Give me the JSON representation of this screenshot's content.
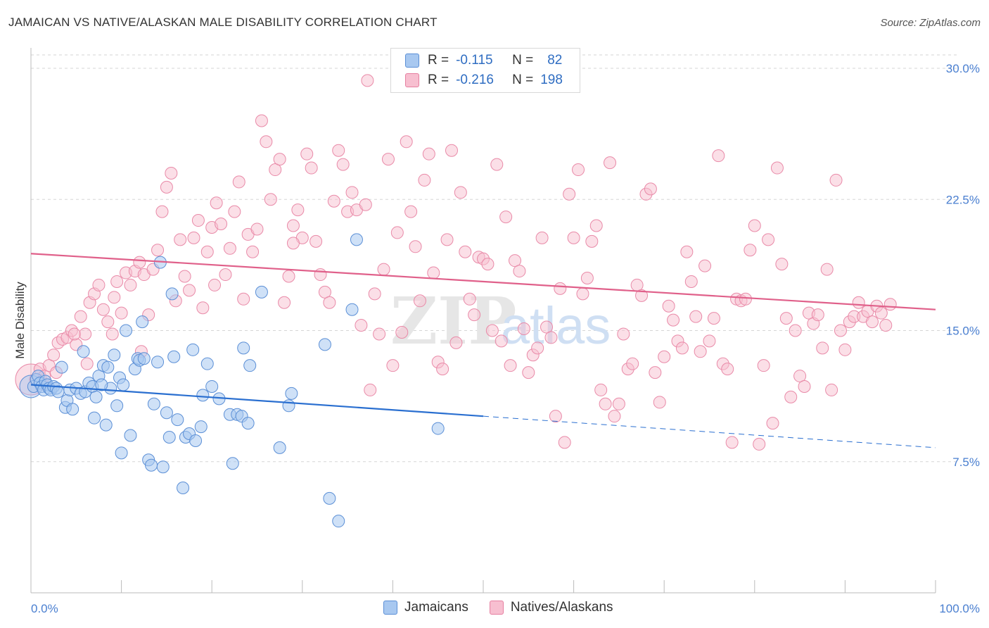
{
  "header": {
    "title": "JAMAICAN VS NATIVE/ALASKAN MALE DISABILITY CORRELATION CHART",
    "source": "Source: ZipAtlas.com"
  },
  "watermark": {
    "zip": "ZIP",
    "atlas": "atlas"
  },
  "legend": {
    "rows": [
      {
        "r_label": "R =",
        "r_value": "-0.115",
        "n_label": "N =",
        "n_value": "82",
        "color": "#a8c8f0",
        "border": "#5b8fd6"
      },
      {
        "r_label": "R =",
        "r_value": "-0.216",
        "n_label": "N =",
        "n_value": "198",
        "color": "#f7bfd0",
        "border": "#e67fa0"
      }
    ]
  },
  "bottom_legend": {
    "items": [
      {
        "label": "Jamaicans",
        "color": "#a8c8f0",
        "border": "#5b8fd6"
      },
      {
        "label": "Natives/Alaskans",
        "color": "#f7bfd0",
        "border": "#e67fa0"
      }
    ]
  },
  "colors": {
    "jamaican_fill": "#a8c8f0",
    "jamaican_stroke": "#5b8fd6",
    "jamaican_line": "#2a6fd0",
    "native_fill": "#f7bfd0",
    "native_stroke": "#e98aa8",
    "native_line": "#e0608a",
    "tick_label": "#4a7fd0",
    "grid": "#d6d6d6"
  },
  "chart_data": {
    "type": "scatter",
    "title": "JAMAICAN VS NATIVE/ALASKAN MALE DISABILITY CORRELATION CHART",
    "xlabel": "",
    "ylabel": "Male Disability",
    "xlim": [
      0,
      100
    ],
    "ylim": [
      0,
      31.5
    ],
    "x_tick_labels": [
      "0.0%",
      "100.0%"
    ],
    "y_ticks": [
      7.5,
      15.0,
      22.5,
      30.0
    ],
    "y_tick_labels": [
      "7.5%",
      "15.0%",
      "22.5%",
      "30.0%"
    ],
    "grid": "horizontal dashed",
    "legend_position": "top-center",
    "series": [
      {
        "name": "Jamaicans",
        "r": -0.115,
        "n": 82,
        "trend": {
          "x": [
            0,
            50
          ],
          "y": [
            11.9,
            10.1
          ],
          "dashed_to": [
            100,
            8.3
          ]
        },
        "points": [
          [
            0.3,
            11.8
          ],
          [
            0.6,
            12.2
          ],
          [
            0.8,
            12.4
          ],
          [
            1.0,
            12.0
          ],
          [
            1.2,
            11.8
          ],
          [
            1.4,
            11.6
          ],
          [
            1.6,
            12.1
          ],
          [
            1.8,
            11.9
          ],
          [
            2.0,
            11.7
          ],
          [
            2.2,
            11.6
          ],
          [
            2.5,
            11.8
          ],
          [
            2.8,
            11.7
          ],
          [
            3.0,
            11.5
          ],
          [
            3.4,
            12.9
          ],
          [
            3.8,
            10.6
          ],
          [
            4.0,
            11.0
          ],
          [
            4.3,
            11.6
          ],
          [
            4.6,
            10.5
          ],
          [
            5.0,
            11.7
          ],
          [
            5.5,
            11.4
          ],
          [
            5.8,
            13.8
          ],
          [
            6.0,
            11.5
          ],
          [
            6.4,
            12.0
          ],
          [
            6.8,
            11.8
          ],
          [
            7.2,
            11.2
          ],
          [
            7.5,
            12.4
          ],
          [
            7.0,
            10.0
          ],
          [
            8.0,
            13.0
          ],
          [
            8.3,
            9.6
          ],
          [
            8.5,
            12.9
          ],
          [
            8.8,
            11.7
          ],
          [
            9.2,
            13.6
          ],
          [
            9.5,
            10.7
          ],
          [
            9.8,
            12.3
          ],
          [
            10.2,
            11.9
          ],
          [
            10.5,
            15.0
          ],
          [
            11.0,
            9.0
          ],
          [
            11.5,
            12.8
          ],
          [
            11.8,
            13.4
          ],
          [
            12.0,
            13.3
          ],
          [
            12.3,
            15.5
          ],
          [
            12.5,
            13.4
          ],
          [
            13.0,
            7.6
          ],
          [
            13.3,
            7.3
          ],
          [
            13.6,
            10.8
          ],
          [
            14.0,
            13.2
          ],
          [
            14.3,
            18.9
          ],
          [
            14.6,
            7.2
          ],
          [
            15.0,
            10.3
          ],
          [
            15.3,
            8.9
          ],
          [
            15.6,
            17.1
          ],
          [
            15.8,
            13.5
          ],
          [
            16.2,
            9.9
          ],
          [
            16.8,
            6.0
          ],
          [
            17.1,
            8.9
          ],
          [
            17.5,
            9.1
          ],
          [
            17.9,
            13.9
          ],
          [
            18.2,
            8.7
          ],
          [
            18.8,
            9.5
          ],
          [
            19.0,
            11.3
          ],
          [
            19.5,
            13.1
          ],
          [
            20.0,
            11.8
          ],
          [
            20.8,
            11.1
          ],
          [
            22.0,
            10.2
          ],
          [
            22.3,
            7.4
          ],
          [
            22.8,
            10.2
          ],
          [
            23.3,
            10.1
          ],
          [
            24.0,
            9.7
          ],
          [
            23.5,
            14.0
          ],
          [
            24.2,
            13.0
          ],
          [
            25.5,
            17.2
          ],
          [
            27.5,
            8.3
          ],
          [
            28.5,
            10.7
          ],
          [
            28.8,
            11.4
          ],
          [
            33.0,
            5.4
          ],
          [
            32.5,
            14.2
          ],
          [
            34.0,
            4.1
          ],
          [
            36.0,
            20.2
          ],
          [
            35.5,
            16.2
          ],
          [
            45.0,
            9.4
          ],
          [
            10.0,
            8.0
          ],
          [
            7.8,
            11.9
          ]
        ]
      },
      {
        "name": "Natives/Alaskans",
        "r": -0.216,
        "n": 198,
        "trend": {
          "x": [
            0,
            100
          ],
          "y": [
            19.4,
            16.2
          ]
        },
        "points": [
          [
            0.5,
            12.2
          ],
          [
            1.0,
            12.8
          ],
          [
            1.5,
            12.4
          ],
          [
            2.0,
            13.0
          ],
          [
            2.5,
            13.6
          ],
          [
            3.0,
            14.3
          ],
          [
            3.5,
            14.5
          ],
          [
            4.0,
            14.6
          ],
          [
            4.5,
            15.0
          ],
          [
            5.0,
            14.2
          ],
          [
            5.5,
            15.8
          ],
          [
            6.0,
            14.8
          ],
          [
            6.5,
            16.6
          ],
          [
            7.0,
            17.1
          ],
          [
            7.5,
            17.6
          ],
          [
            8.0,
            16.2
          ],
          [
            8.5,
            15.5
          ],
          [
            9.0,
            14.8
          ],
          [
            9.5,
            17.8
          ],
          [
            10.0,
            16.0
          ],
          [
            10.5,
            18.3
          ],
          [
            11.0,
            17.6
          ],
          [
            11.5,
            18.4
          ],
          [
            12.0,
            18.9
          ],
          [
            12.5,
            18.2
          ],
          [
            13.0,
            15.9
          ],
          [
            13.5,
            18.5
          ],
          [
            14.0,
            19.6
          ],
          [
            14.5,
            21.8
          ],
          [
            15.0,
            23.2
          ],
          [
            15.5,
            24.0
          ],
          [
            16.0,
            16.7
          ],
          [
            16.5,
            20.2
          ],
          [
            17.0,
            18.1
          ],
          [
            17.5,
            17.3
          ],
          [
            18.0,
            20.3
          ],
          [
            18.5,
            21.3
          ],
          [
            19.0,
            16.3
          ],
          [
            19.5,
            19.5
          ],
          [
            20.0,
            20.9
          ],
          [
            20.5,
            22.3
          ],
          [
            21.0,
            21.1
          ],
          [
            21.5,
            18.2
          ],
          [
            22.0,
            19.7
          ],
          [
            22.5,
            21.8
          ],
          [
            23.0,
            23.5
          ],
          [
            23.5,
            16.8
          ],
          [
            24.0,
            20.5
          ],
          [
            24.5,
            19.5
          ],
          [
            25.0,
            20.8
          ],
          [
            25.5,
            27.0
          ],
          [
            26.0,
            25.8
          ],
          [
            26.5,
            22.5
          ],
          [
            27.0,
            24.2
          ],
          [
            27.5,
            24.8
          ],
          [
            28.0,
            16.6
          ],
          [
            28.5,
            18.1
          ],
          [
            29.0,
            21.0
          ],
          [
            29.5,
            21.9
          ],
          [
            30.0,
            20.3
          ],
          [
            30.5,
            25.1
          ],
          [
            31.0,
            24.3
          ],
          [
            31.5,
            20.1
          ],
          [
            32.0,
            18.2
          ],
          [
            32.5,
            17.2
          ],
          [
            33.0,
            16.6
          ],
          [
            33.5,
            22.4
          ],
          [
            34.0,
            25.3
          ],
          [
            34.5,
            24.5
          ],
          [
            35.0,
            21.8
          ],
          [
            35.5,
            22.9
          ],
          [
            36.0,
            21.9
          ],
          [
            36.5,
            15.3
          ],
          [
            37.0,
            22.2
          ],
          [
            37.5,
            11.6
          ],
          [
            38.0,
            17.1
          ],
          [
            38.5,
            14.8
          ],
          [
            39.0,
            18.5
          ],
          [
            39.5,
            24.8
          ],
          [
            40.0,
            13.0
          ],
          [
            40.5,
            20.6
          ],
          [
            41.0,
            14.9
          ],
          [
            41.5,
            25.8
          ],
          [
            42.0,
            21.8
          ],
          [
            42.5,
            19.8
          ],
          [
            43.0,
            16.7
          ],
          [
            43.5,
            23.6
          ],
          [
            44.0,
            25.1
          ],
          [
            44.5,
            18.3
          ],
          [
            45.0,
            13.2
          ],
          [
            45.5,
            12.8
          ],
          [
            46.0,
            20.2
          ],
          [
            46.5,
            25.3
          ],
          [
            47.0,
            14.3
          ],
          [
            47.5,
            22.9
          ],
          [
            48.0,
            19.5
          ],
          [
            48.5,
            16.8
          ],
          [
            49.0,
            15.9
          ],
          [
            49.5,
            19.2
          ],
          [
            50.0,
            19.1
          ],
          [
            50.5,
            18.8
          ],
          [
            51.0,
            15.0
          ],
          [
            51.5,
            24.5
          ],
          [
            52.0,
            14.4
          ],
          [
            52.5,
            21.5
          ],
          [
            53.0,
            13.0
          ],
          [
            53.5,
            19.0
          ],
          [
            54.0,
            18.4
          ],
          [
            54.5,
            15.1
          ],
          [
            55.0,
            12.6
          ],
          [
            55.5,
            13.6
          ],
          [
            56.0,
            14.0
          ],
          [
            56.5,
            20.3
          ],
          [
            57.0,
            15.2
          ],
          [
            57.5,
            14.6
          ],
          [
            58.0,
            10.1
          ],
          [
            58.5,
            17.4
          ],
          [
            59.0,
            8.6
          ],
          [
            59.5,
            22.8
          ],
          [
            60.0,
            20.3
          ],
          [
            60.5,
            24.2
          ],
          [
            61.0,
            17.1
          ],
          [
            61.5,
            18.0
          ],
          [
            62.0,
            20.1
          ],
          [
            62.5,
            21.0
          ],
          [
            63.0,
            11.6
          ],
          [
            63.5,
            10.8
          ],
          [
            64.0,
            24.6
          ],
          [
            64.5,
            10.1
          ],
          [
            65.0,
            10.8
          ],
          [
            65.5,
            14.8
          ],
          [
            66.0,
            12.8
          ],
          [
            66.5,
            13.1
          ],
          [
            67.0,
            17.6
          ],
          [
            67.5,
            17.0
          ],
          [
            68.0,
            22.8
          ],
          [
            68.5,
            23.1
          ],
          [
            69.0,
            12.6
          ],
          [
            69.5,
            10.9
          ],
          [
            70.0,
            13.5
          ],
          [
            70.5,
            16.4
          ],
          [
            71.0,
            15.6
          ],
          [
            71.5,
            14.4
          ],
          [
            72.0,
            14.0
          ],
          [
            72.5,
            19.5
          ],
          [
            73.0,
            17.8
          ],
          [
            73.5,
            15.8
          ],
          [
            74.0,
            13.8
          ],
          [
            74.5,
            18.7
          ],
          [
            75.0,
            14.4
          ],
          [
            75.5,
            15.7
          ],
          [
            76.0,
            25.0
          ],
          [
            76.5,
            13.1
          ],
          [
            77.0,
            12.8
          ],
          [
            77.5,
            8.6
          ],
          [
            78.0,
            16.8
          ],
          [
            78.5,
            16.7
          ],
          [
            79.0,
            16.8
          ],
          [
            79.5,
            19.6
          ],
          [
            80.0,
            21.0
          ],
          [
            80.5,
            8.5
          ],
          [
            81.0,
            13.0
          ],
          [
            81.5,
            20.2
          ],
          [
            82.0,
            9.7
          ],
          [
            82.5,
            24.3
          ],
          [
            83.0,
            18.8
          ],
          [
            83.5,
            15.7
          ],
          [
            84.0,
            11.2
          ],
          [
            84.5,
            15.0
          ],
          [
            85.0,
            12.4
          ],
          [
            85.5,
            11.8
          ],
          [
            86.0,
            16.0
          ],
          [
            86.5,
            15.4
          ],
          [
            87.0,
            15.9
          ],
          [
            87.5,
            14.0
          ],
          [
            88.0,
            18.5
          ],
          [
            88.5,
            11.6
          ],
          [
            89.0,
            23.6
          ],
          [
            89.5,
            15.0
          ],
          [
            90.0,
            13.9
          ],
          [
            90.5,
            15.5
          ],
          [
            91.0,
            15.8
          ],
          [
            91.5,
            16.6
          ],
          [
            92.0,
            15.8
          ],
          [
            92.5,
            16.1
          ],
          [
            93.0,
            15.5
          ],
          [
            93.5,
            16.4
          ],
          [
            94.0,
            16.0
          ],
          [
            94.5,
            15.3
          ],
          [
            95.0,
            16.5
          ],
          [
            29.0,
            20.0
          ],
          [
            37.2,
            29.3
          ],
          [
            12.2,
            13.8
          ],
          [
            6.2,
            13.1
          ],
          [
            2.8,
            12.6
          ],
          [
            4.8,
            14.8
          ],
          [
            9.2,
            16.9
          ],
          [
            20.3,
            17.6
          ]
        ]
      }
    ]
  }
}
